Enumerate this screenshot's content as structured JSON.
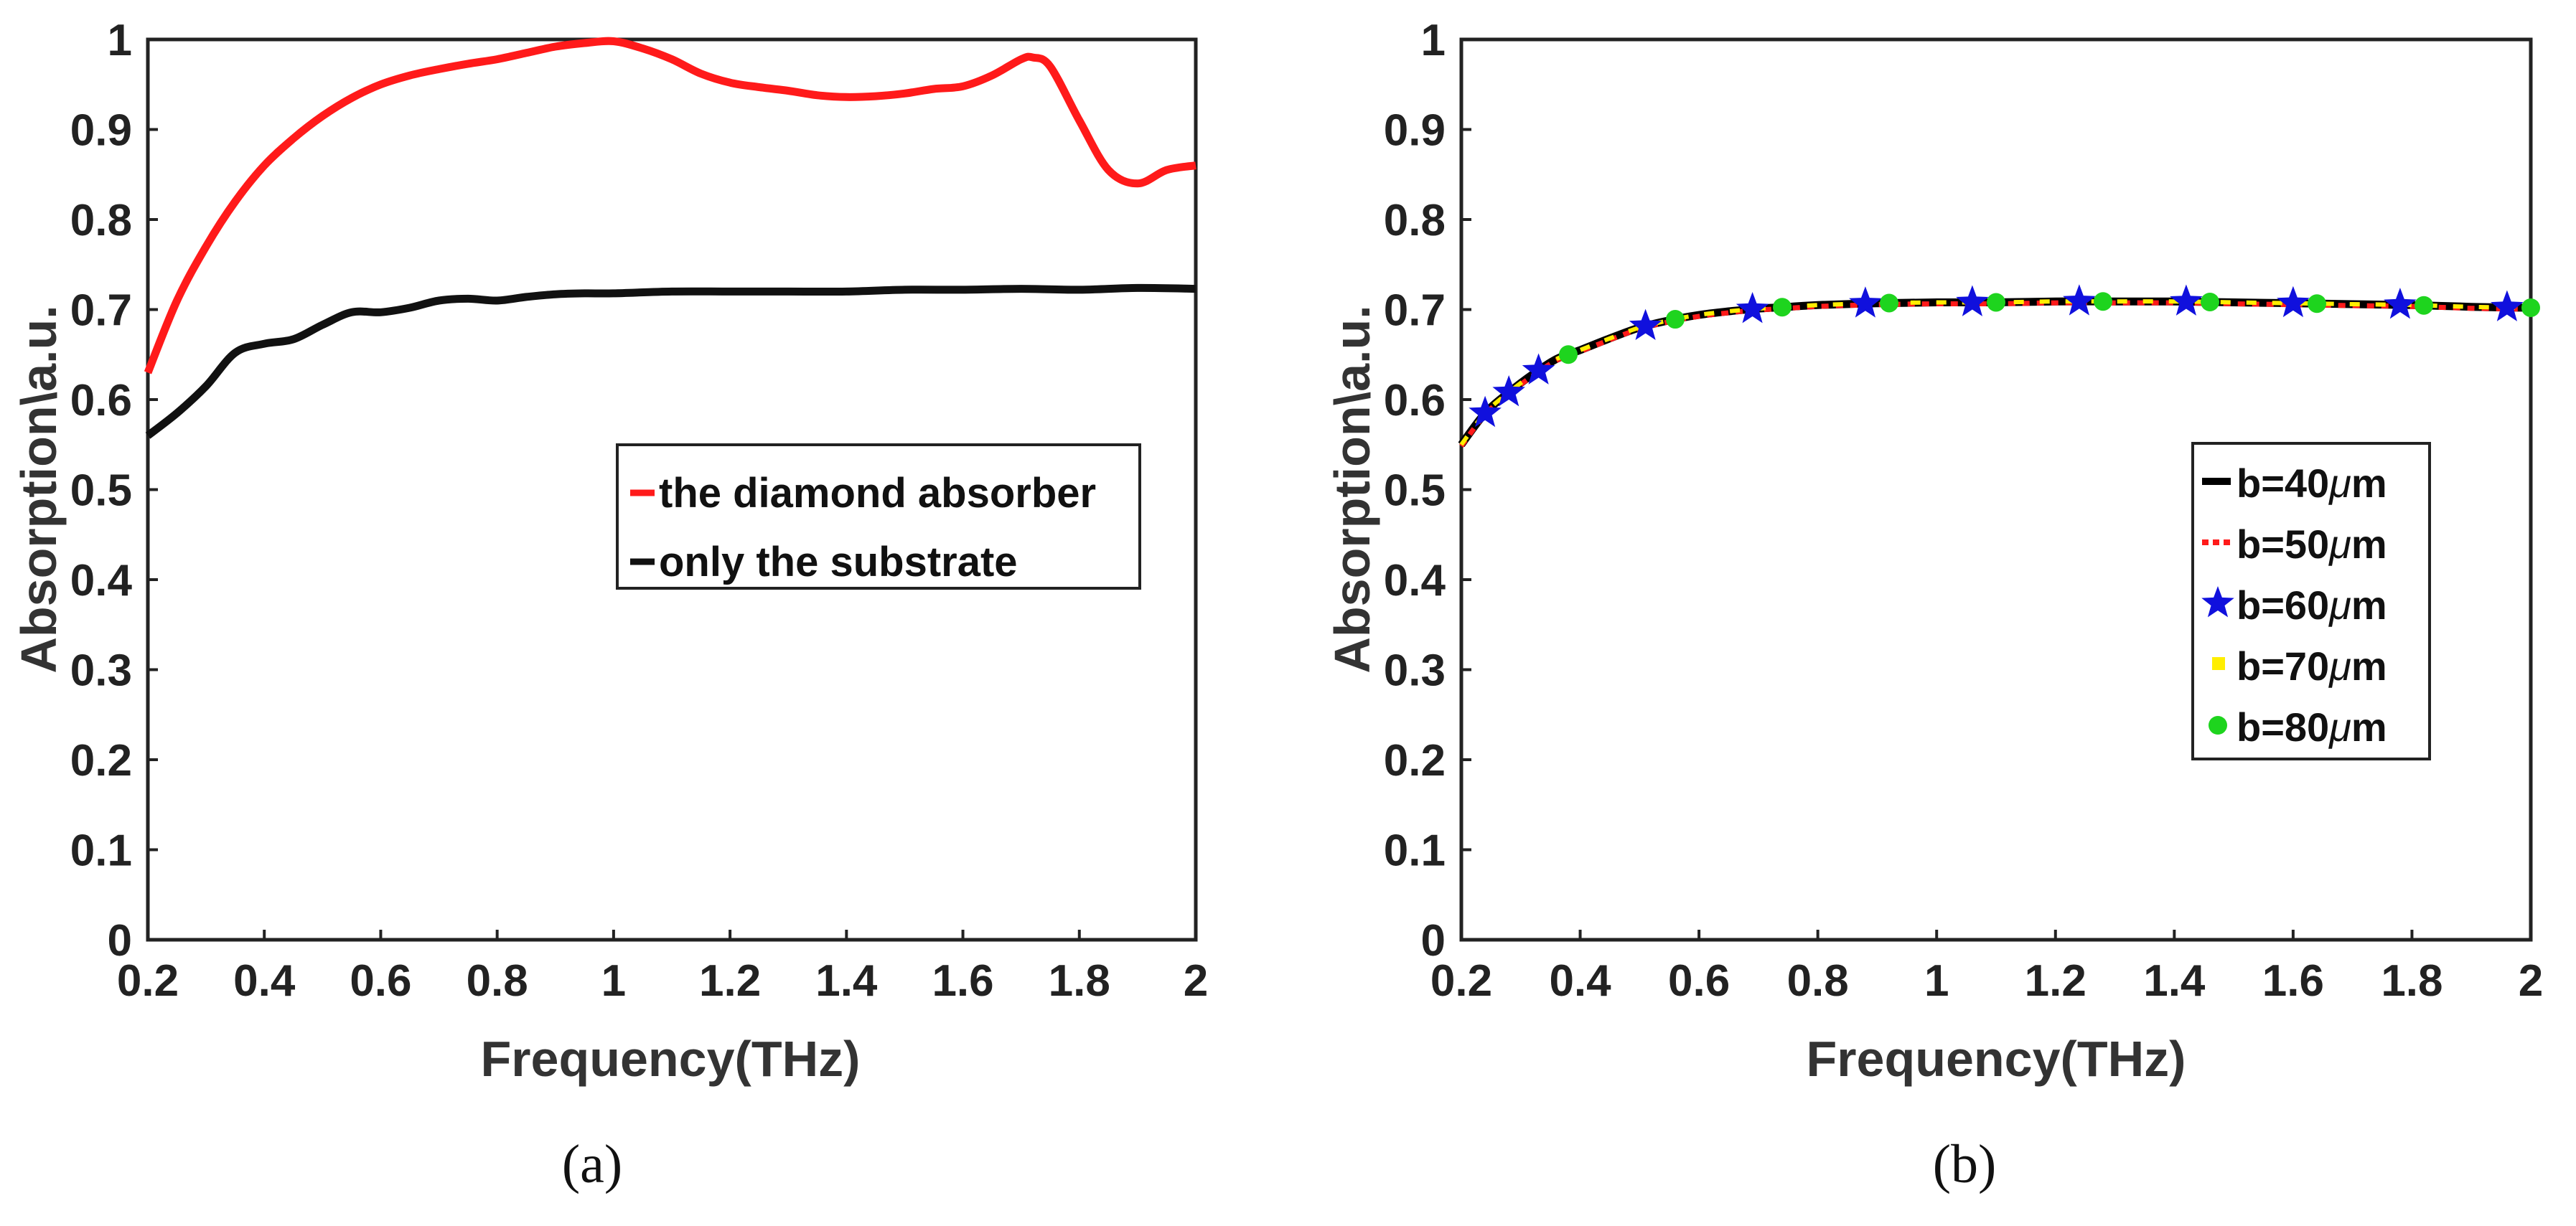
{
  "chart_data": [
    {
      "type": "line",
      "panel": "a",
      "caption": "(a)",
      "xlabel": "Frequency(THz)",
      "ylabel": "Absorption\\a.u.",
      "xlim": [
        0.2,
        2
      ],
      "ylim": [
        0,
        1
      ],
      "xticks": [
        "0.2",
        "0.4",
        "0.6",
        "0.8",
        "1",
        "1.2",
        "1.4",
        "1.6",
        "1.8",
        "2"
      ],
      "yticks": [
        "0",
        "0.1",
        "0.2",
        "0.3",
        "0.4",
        "0.5",
        "0.6",
        "0.7",
        "0.8",
        "0.9",
        "1"
      ],
      "legend_position": "middle-right",
      "series": [
        {
          "name": "the diamond absorber",
          "color": "#ff1a1a",
          "x": [
            0.2,
            0.25,
            0.3,
            0.35,
            0.4,
            0.45,
            0.5,
            0.55,
            0.6,
            0.65,
            0.7,
            0.75,
            0.8,
            0.85,
            0.9,
            0.95,
            1.0,
            1.05,
            1.1,
            1.15,
            1.2,
            1.25,
            1.3,
            1.35,
            1.4,
            1.45,
            1.5,
            1.55,
            1.6,
            1.65,
            1.7,
            1.72,
            1.75,
            1.8,
            1.85,
            1.9,
            1.95,
            2.0
          ],
          "y": [
            0.63,
            0.71,
            0.77,
            0.82,
            0.86,
            0.89,
            0.915,
            0.935,
            0.95,
            0.96,
            0.967,
            0.973,
            0.978,
            0.985,
            0.992,
            0.996,
            0.998,
            0.99,
            0.978,
            0.962,
            0.952,
            0.947,
            0.943,
            0.938,
            0.936,
            0.937,
            0.94,
            0.945,
            0.948,
            0.96,
            0.978,
            0.98,
            0.97,
            0.91,
            0.855,
            0.84,
            0.855,
            0.86
          ]
        },
        {
          "name": "only the substrate",
          "color": "#111111",
          "x": [
            0.2,
            0.25,
            0.3,
            0.35,
            0.4,
            0.45,
            0.5,
            0.55,
            0.6,
            0.65,
            0.7,
            0.75,
            0.8,
            0.85,
            0.9,
            0.95,
            1.0,
            1.1,
            1.2,
            1.3,
            1.4,
            1.5,
            1.6,
            1.7,
            1.8,
            1.9,
            2.0
          ],
          "y": [
            0.56,
            0.585,
            0.615,
            0.652,
            0.662,
            0.667,
            0.683,
            0.697,
            0.697,
            0.702,
            0.71,
            0.712,
            0.71,
            0.714,
            0.717,
            0.718,
            0.718,
            0.72,
            0.72,
            0.72,
            0.72,
            0.722,
            0.722,
            0.723,
            0.722,
            0.724,
            0.723
          ]
        }
      ]
    },
    {
      "type": "line",
      "panel": "b",
      "caption": "(b)",
      "xlabel": "Frequency(THz)",
      "ylabel": "Absorption\\a.u.",
      "xlim": [
        0.2,
        2
      ],
      "ylim": [
        0,
        1
      ],
      "xticks": [
        "0.2",
        "0.4",
        "0.6",
        "0.8",
        "1",
        "1.2",
        "1.4",
        "1.6",
        "1.8",
        "2"
      ],
      "yticks": [
        "0",
        "0.1",
        "0.2",
        "0.3",
        "0.4",
        "0.5",
        "0.6",
        "0.7",
        "0.8",
        "0.9",
        "1"
      ],
      "legend_position": "middle-right",
      "x": [
        0.2,
        0.24,
        0.28,
        0.32,
        0.36,
        0.4,
        0.45,
        0.5,
        0.55,
        0.6,
        0.65,
        0.7,
        0.75,
        0.8,
        0.9,
        1.0,
        1.1,
        1.2,
        1.3,
        1.4,
        1.5,
        1.6,
        1.7,
        1.8,
        1.9,
        2.0
      ],
      "y": [
        0.55,
        0.585,
        0.608,
        0.628,
        0.645,
        0.655,
        0.668,
        0.68,
        0.688,
        0.694,
        0.698,
        0.701,
        0.703,
        0.705,
        0.707,
        0.708,
        0.708,
        0.709,
        0.709,
        0.709,
        0.708,
        0.707,
        0.706,
        0.705,
        0.703,
        0.702
      ],
      "series": [
        {
          "name_prefix": "b=40",
          "name_unit": "μm",
          "color": "#000000",
          "style": "solid",
          "marker": "none"
        },
        {
          "name_prefix": "b=50",
          "name_unit": "μm",
          "color": "#ff1a1a",
          "style": "dotted",
          "marker": "none"
        },
        {
          "name_prefix": "b=60",
          "name_unit": "μm",
          "color": "#1010dd",
          "style": "none",
          "marker": "star",
          "marker_x": [
            0.24,
            0.28,
            0.33,
            0.51,
            0.69,
            0.88,
            1.06,
            1.24,
            1.42,
            1.6,
            1.78,
            1.96
          ]
        },
        {
          "name_prefix": "b=70",
          "name_unit": "μm",
          "color": "#ffee00",
          "style": "dashed",
          "marker": "none"
        },
        {
          "name_prefix": "b=80",
          "name_unit": "μm",
          "color": "#1ed41e",
          "style": "none",
          "marker": "circle",
          "marker_x": [
            0.38,
            0.56,
            0.74,
            0.92,
            1.1,
            1.28,
            1.46,
            1.64,
            1.82,
            2.0
          ]
        }
      ]
    }
  ]
}
